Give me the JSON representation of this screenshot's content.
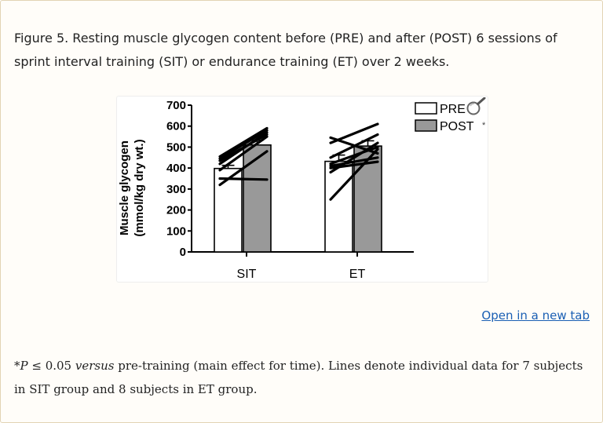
{
  "caption": {
    "text": "Figure 5. Resting muscle glycogen content before (PRE) and after (POST) 6 sessions of sprint interval training (SIT) or endurance training (ET) over 2 weeks."
  },
  "open_link": "Open in a new tab",
  "footnote": {
    "marker": "*",
    "p_symbol": "P",
    "before_versus": " ≤ 0.05 ",
    "versus": "versus",
    "rest": " pre-training (main effect for time). Lines denote individual data for 7 subjects in SIT group and 8 subjects in ET group."
  },
  "colors": {
    "pre_fill": "#ffffff",
    "post_fill": "#999999",
    "ink": "#000000",
    "link": "#1a5fb4"
  },
  "chart_data": {
    "type": "bar",
    "title": "",
    "xlabel": "",
    "ylabel": "Muscle glycogen",
    "ylabel_units": "(mmol/kg dry wt.)",
    "ylim": [
      0,
      700
    ],
    "yticks": [
      0,
      100,
      200,
      300,
      400,
      500,
      600,
      700
    ],
    "categories": [
      "SIT",
      "ET"
    ],
    "series": [
      {
        "name": "PRE",
        "values": [
          398,
          432
        ],
        "errors": [
          15,
          30
        ]
      },
      {
        "name": "POST",
        "values": [
          510,
          505
        ],
        "errors": [
          22,
          25
        ]
      }
    ],
    "legend": {
      "entries": [
        "PRE",
        "POST"
      ],
      "post_marker": "*",
      "placement": "top-right"
    },
    "individual_lines": {
      "SIT": [
        [
          320,
          480
        ],
        [
          350,
          345
        ],
        [
          390,
          550
        ],
        [
          420,
          570
        ],
        [
          435,
          560
        ],
        [
          445,
          580
        ],
        [
          455,
          590
        ]
      ],
      "ET": [
        [
          250,
          490
        ],
        [
          380,
          520
        ],
        [
          400,
          430
        ],
        [
          410,
          450
        ],
        [
          420,
          500
        ],
        [
          450,
          560
        ],
        [
          520,
          610
        ],
        [
          545,
          470
        ]
      ]
    }
  }
}
